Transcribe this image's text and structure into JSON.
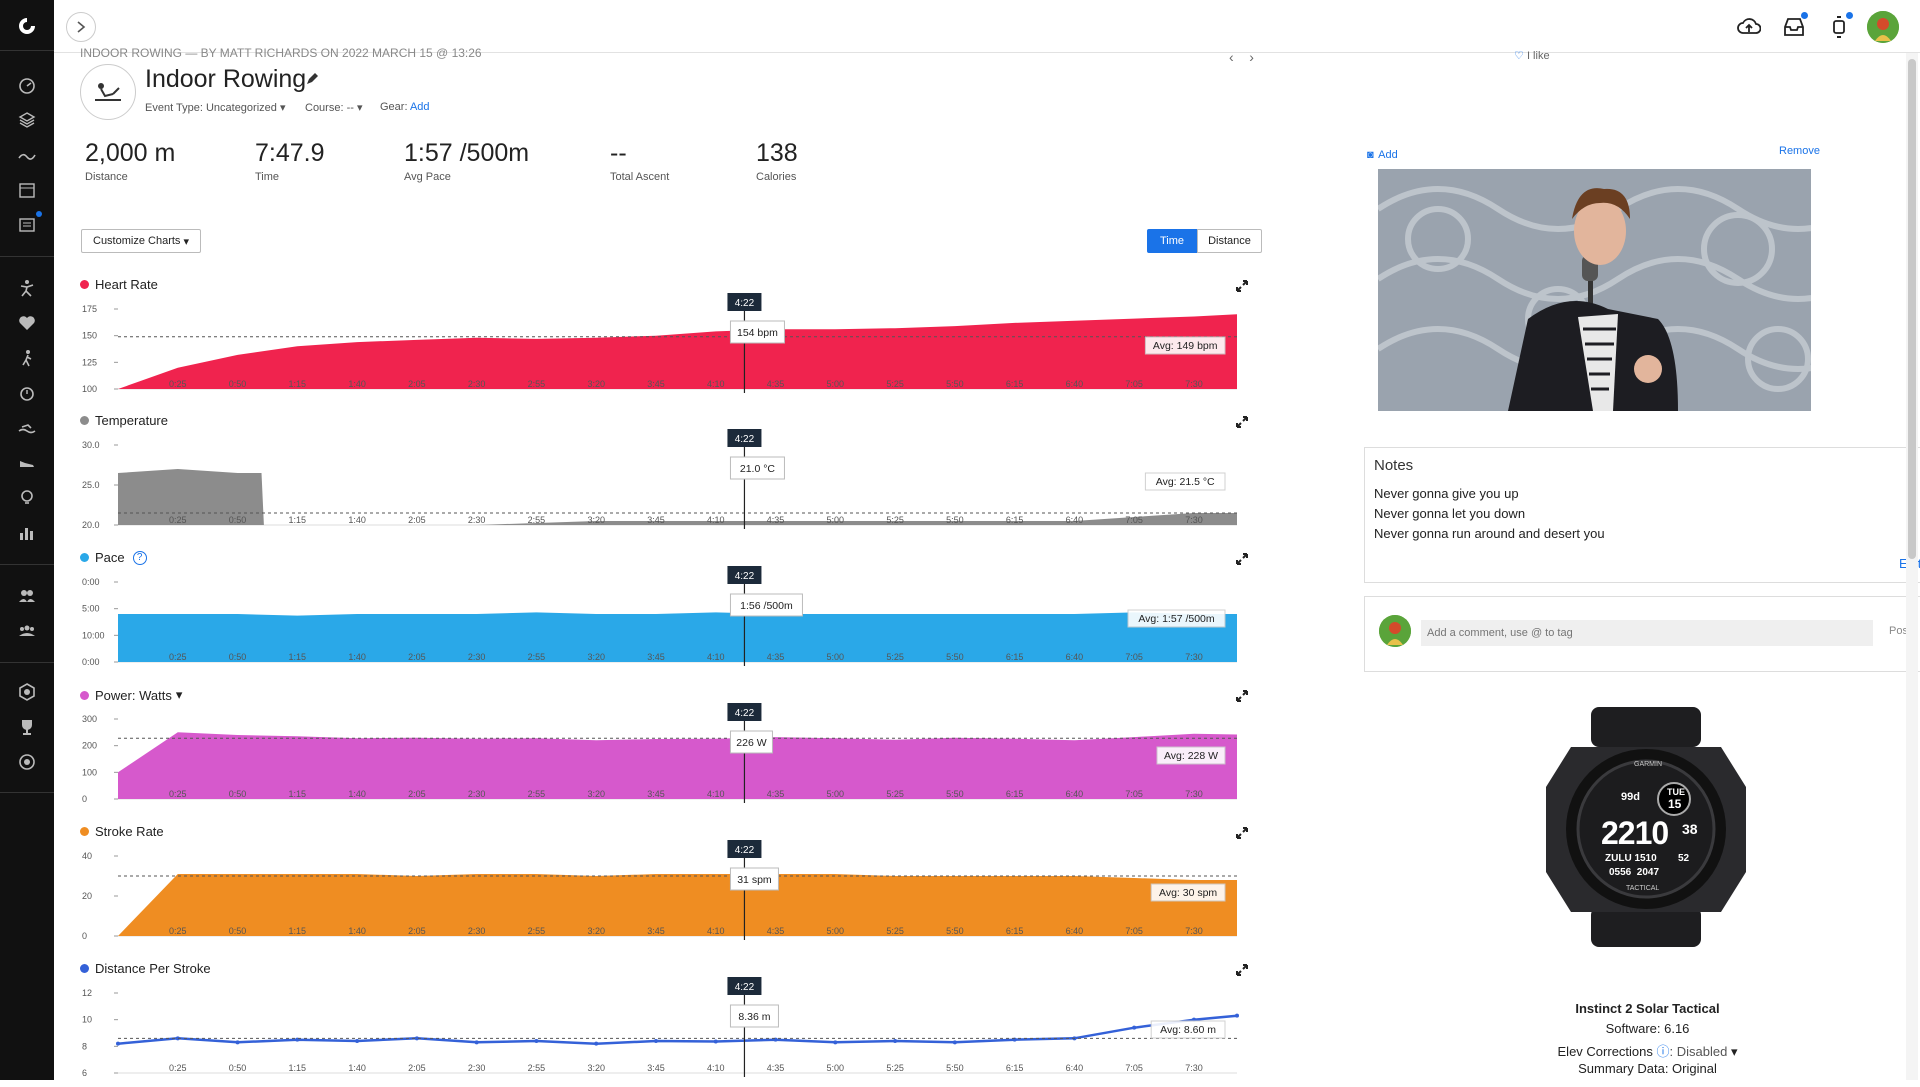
{
  "colors": {
    "accent": "#1a73e8",
    "heart_rate": "#f0234e",
    "temperature": "#8c8c8c",
    "pace": "#2aa8e8",
    "power": "#d659cc",
    "stroke_rate": "#ef8d22",
    "distance_per_stroke": "#3461d8",
    "sidebar_bg": "#111111"
  },
  "sidebar": {
    "items": [
      "logo-icon",
      "dashboard-icon",
      "layers-icon",
      "chart-wave-icon",
      "calendar-icon",
      "reports-icon",
      "activity-runner-icon",
      "heart-icon",
      "walking-icon",
      "stopwatch-icon",
      "swim-icon",
      "shoe-icon",
      "lightbulb-icon",
      "bar-chart-icon",
      "users-icon",
      "groups-icon",
      "badge-icon",
      "trophy-icon",
      "target-icon"
    ]
  },
  "header": {
    "breadcrumb": "INDOOR ROWING — BY MATT RICHARDS ON 2022 MARCH 15 @ 13:26",
    "title": "Indoor Rowing",
    "like_label": "I like",
    "event_type_label": "Event Type:",
    "event_type_value": "Uncategorized",
    "course_label": "Course:",
    "course_value": "--",
    "gear_label": "Gear:",
    "gear_link": "Add"
  },
  "stats": [
    {
      "value": "2,000 m",
      "label": "Distance"
    },
    {
      "value": "7:47.9",
      "label": "Time"
    },
    {
      "value": "1:57 /500m",
      "label": "Avg Pace"
    },
    {
      "value": "--",
      "label": "Total Ascent"
    },
    {
      "value": "138",
      "label": "Calories"
    }
  ],
  "controls": {
    "customize_label": "Customize Charts",
    "time_label": "Time",
    "distance_label": "Distance"
  },
  "x_ticks": [
    "0:25",
    "0:50",
    "1:15",
    "1:40",
    "2:05",
    "2:30",
    "2:55",
    "3:20",
    "3:45",
    "4:10",
    "4:35",
    "5:00",
    "5:25",
    "5:50",
    "6:15",
    "6:40",
    "7:05",
    "7:30"
  ],
  "cursor_time": "4:22",
  "charts": [
    {
      "key": "hr",
      "title": "Heart Rate",
      "y_ticks": [
        "175",
        "150",
        "125",
        "100"
      ],
      "tooltip": "154 bpm",
      "avg_label": "Avg: 149 bpm"
    },
    {
      "key": "temp",
      "title": "Temperature",
      "y_ticks": [
        "30.0",
        "25.0",
        "20.0"
      ],
      "tooltip": "21.0 °C",
      "avg_label": "Avg: 21.5 °C"
    },
    {
      "key": "pace",
      "title": "Pace",
      "y_ticks": [
        "0:00",
        "5:00",
        "10:00",
        "0:00"
      ],
      "tooltip": "1:56 /500m",
      "avg_label": "Avg: 1:57 /500m"
    },
    {
      "key": "power",
      "title": "Power: Watts",
      "y_ticks": [
        "300",
        "200",
        "100",
        "0"
      ],
      "tooltip": "226 W",
      "avg_label": "Avg: 228 W"
    },
    {
      "key": "stroke",
      "title": "Stroke Rate",
      "y_ticks": [
        "40",
        "20",
        "0"
      ],
      "tooltip": "31 spm",
      "avg_label": "Avg: 30 spm"
    },
    {
      "key": "dps",
      "title": "Distance Per Stroke",
      "y_ticks": [
        "12",
        "10",
        "8",
        "6"
      ],
      "tooltip": "8.36 m",
      "avg_label": "Avg: 8.60 m"
    }
  ],
  "photo": {
    "add_label": "Add",
    "remove_label": "Remove"
  },
  "notes": {
    "heading": "Notes",
    "lines": [
      "Never gonna give you up",
      "Never gonna let you down",
      "Never gonna run around and desert you"
    ],
    "edit_label": "Edit"
  },
  "comment": {
    "placeholder": "Add a comment, use @ to tag",
    "post_label": "Post"
  },
  "device": {
    "name": "Instinct 2 Solar Tactical",
    "software": "Software: 6.16",
    "elev_label": "Elev Corrections",
    "elev_value": ": Disabled",
    "summary": "Summary Data: Original",
    "watch_brand": "GARMIN",
    "watch_day": "TUE",
    "watch_date": "15",
    "watch_time": "2210",
    "watch_sec": "38",
    "watch_battery": "99d",
    "watch_zulu": "ZULU 1510",
    "watch_alt": "52",
    "watch_bottom": "0556  2047",
    "watch_tactical": "TACTICAL"
  },
  "chart_data": [
    {
      "type": "area",
      "title": "Heart Rate",
      "ylim": [
        100,
        175
      ],
      "avg": 149,
      "x": [
        "0:00",
        "0:25",
        "0:50",
        "1:15",
        "1:40",
        "2:05",
        "2:30",
        "2:55",
        "3:20",
        "3:45",
        "4:10",
        "4:35",
        "5:00",
        "5:25",
        "5:50",
        "6:15",
        "6:40",
        "7:05",
        "7:30",
        "7:48"
      ],
      "values": [
        100,
        120,
        132,
        140,
        144,
        146,
        148,
        147,
        148,
        150,
        154,
        156,
        156,
        157,
        159,
        162,
        164,
        166,
        168,
        170
      ]
    },
    {
      "type": "area",
      "title": "Temperature",
      "ylim": [
        20,
        30
      ],
      "avg": 21.5,
      "x": [
        "0:00",
        "0:25",
        "0:50",
        "1:00",
        "1:01",
        "2:30",
        "3:20",
        "4:10",
        "5:00",
        "5:50",
        "6:40",
        "7:05",
        "7:30",
        "7:48"
      ],
      "values": [
        26.5,
        27.0,
        26.5,
        26.5,
        20.0,
        20.0,
        20.5,
        20.5,
        20.5,
        20.5,
        20.5,
        21.0,
        21.5,
        21.5
      ]
    },
    {
      "type": "area",
      "title": "Pace",
      "avg": "1:57 /500m",
      "x": [
        "0:00",
        "0:25",
        "0:50",
        "1:15",
        "1:40",
        "2:05",
        "2:30",
        "2:55",
        "3:20",
        "3:45",
        "4:10",
        "4:35",
        "5:00",
        "5:25",
        "5:50",
        "6:15",
        "6:40",
        "7:05",
        "7:30",
        "7:48"
      ],
      "values": [
        0.6,
        0.6,
        0.6,
        0.58,
        0.6,
        0.6,
        0.6,
        0.62,
        0.6,
        0.6,
        0.62,
        0.6,
        0.6,
        0.6,
        0.6,
        0.6,
        0.6,
        0.62,
        0.6,
        0.6
      ]
    },
    {
      "type": "area",
      "title": "Power: Watts",
      "ylim": [
        0,
        300
      ],
      "avg": 228,
      "x": [
        "0:00",
        "0:25",
        "0:50",
        "1:15",
        "1:40",
        "2:05",
        "2:30",
        "2:55",
        "3:20",
        "3:45",
        "4:10",
        "4:35",
        "5:00",
        "5:25",
        "5:50",
        "6:15",
        "6:40",
        "7:05",
        "7:30",
        "7:48"
      ],
      "values": [
        100,
        250,
        240,
        235,
        228,
        230,
        226,
        228,
        220,
        225,
        226,
        232,
        228,
        222,
        230,
        226,
        220,
        232,
        245,
        242
      ]
    },
    {
      "type": "area",
      "title": "Stroke Rate",
      "ylim": [
        0,
        40
      ],
      "avg": 30,
      "x": [
        "0:00",
        "0:25",
        "0:50",
        "1:15",
        "1:40",
        "2:05",
        "2:30",
        "2:55",
        "3:20",
        "3:45",
        "4:10",
        "4:35",
        "5:00",
        "5:25",
        "5:50",
        "6:15",
        "6:40",
        "7:05",
        "7:30",
        "7:48"
      ],
      "values": [
        0,
        31,
        31,
        31,
        31,
        30,
        31,
        31,
        30,
        31,
        31,
        31,
        31,
        30,
        30,
        30,
        30,
        29,
        28,
        28
      ]
    },
    {
      "type": "line",
      "title": "Distance Per Stroke",
      "ylim": [
        6,
        12
      ],
      "avg": 8.6,
      "x": [
        "0:00",
        "0:25",
        "0:50",
        "1:15",
        "1:40",
        "2:05",
        "2:30",
        "2:55",
        "3:20",
        "3:45",
        "4:10",
        "4:35",
        "5:00",
        "5:25",
        "5:50",
        "6:15",
        "6:40",
        "7:05",
        "7:30",
        "7:48"
      ],
      "values": [
        8.2,
        8.6,
        8.3,
        8.5,
        8.4,
        8.6,
        8.3,
        8.4,
        8.2,
        8.4,
        8.36,
        8.5,
        8.3,
        8.4,
        8.3,
        8.5,
        8.6,
        9.4,
        10.0,
        10.3
      ]
    }
  ]
}
